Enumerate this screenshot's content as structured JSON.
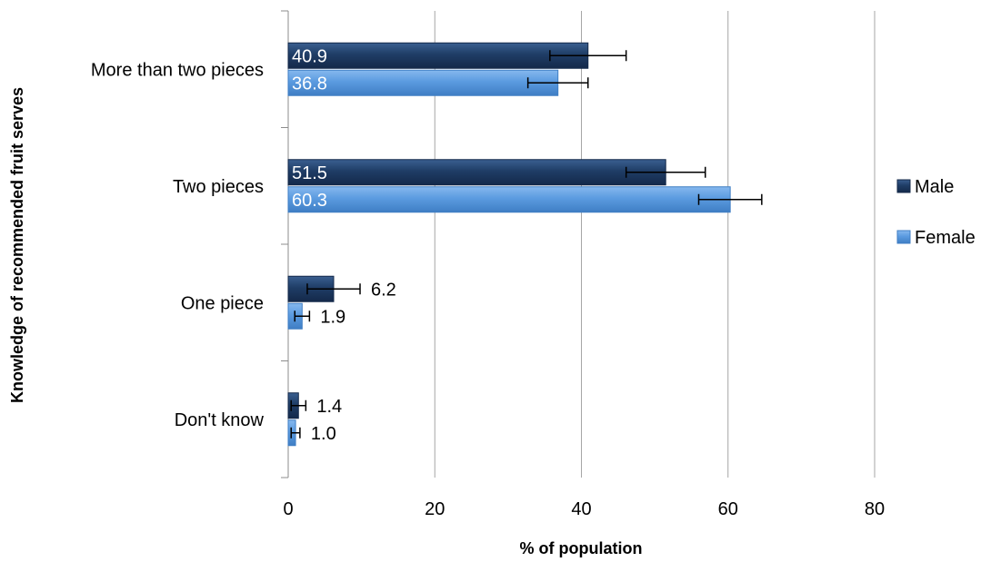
{
  "chart_data": {
    "type": "bar",
    "orientation": "horizontal",
    "title": "",
    "xlabel": "% of population",
    "ylabel": "Knowledge of recommended fruit serves",
    "xlim": [
      0,
      80
    ],
    "xticks": [
      0,
      20,
      40,
      60,
      80
    ],
    "grid": true,
    "legend_position": "right",
    "categories": [
      "More than two pieces",
      "Two pieces",
      "One piece",
      "Don't know"
    ],
    "series": [
      {
        "name": "Male",
        "color": "#1f3d66",
        "values": [
          40.9,
          51.5,
          6.2,
          1.4
        ],
        "labels": [
          "40.9",
          "51.5",
          "6.2",
          "1.4"
        ],
        "error": [
          5.2,
          5.4,
          3.6,
          1.0
        ]
      },
      {
        "name": "Female",
        "color": "#5b9be0",
        "values": [
          36.8,
          60.3,
          1.9,
          1.0
        ],
        "labels": [
          "36.8",
          "60.3",
          "1.9",
          "1.0"
        ],
        "error": [
          4.1,
          4.3,
          1.0,
          0.6
        ]
      }
    ]
  }
}
